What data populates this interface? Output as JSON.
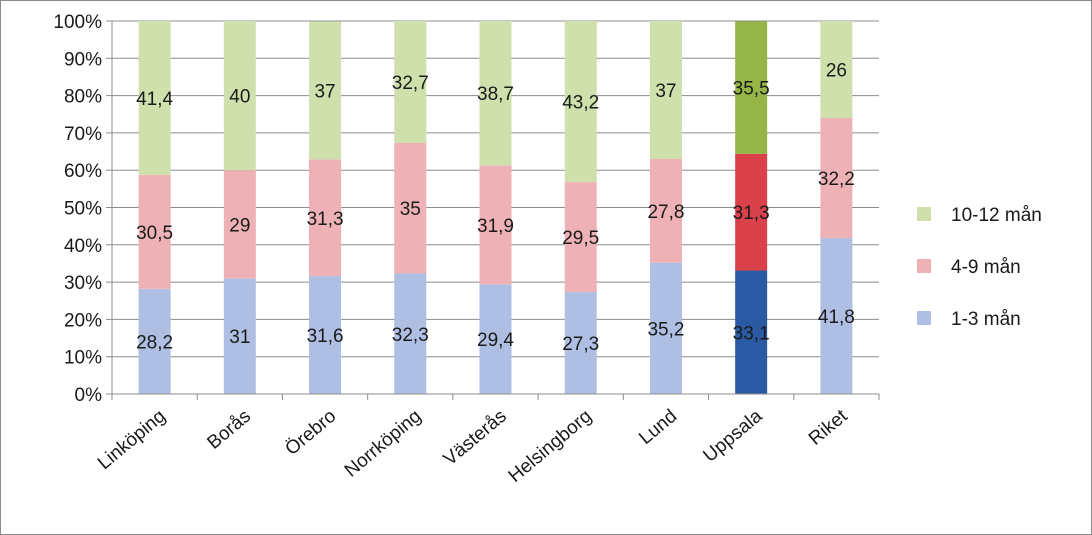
{
  "chart_data": {
    "type": "bar",
    "stacked": true,
    "percent_stacked": true,
    "title": "",
    "xlabel": "",
    "ylabel": "",
    "ylim": [
      0,
      100
    ],
    "y_ticks": [
      "0%",
      "10%",
      "20%",
      "30%",
      "40%",
      "50%",
      "60%",
      "70%",
      "80%",
      "90%",
      "100%"
    ],
    "grid": true,
    "legend_position": "right",
    "categories": [
      "Linköping",
      "Borås",
      "Örebro",
      "Norrköping",
      "Västerås",
      "Helsingborg",
      "Lund",
      "Uppsala",
      "Riket"
    ],
    "series": [
      {
        "name": "1-3 mån",
        "values": [
          28.2,
          31,
          31.6,
          32.3,
          29.4,
          27.3,
          35.2,
          33.1,
          41.8
        ],
        "labels": [
          "28,2",
          "31",
          "31,6",
          "32,3",
          "29,4",
          "27,3",
          "35,2",
          "33,1",
          "41,8"
        ],
        "color": "#aebfe3",
        "highlight_color": "#2a5aa3"
      },
      {
        "name": "4-9 mån",
        "values": [
          30.5,
          29,
          31.3,
          35,
          31.9,
          29.5,
          27.8,
          31.3,
          32.2
        ],
        "labels": [
          "30,5",
          "29",
          "31,3",
          "35",
          "31,9",
          "29,5",
          "27,8",
          "31,3",
          "32,2"
        ],
        "color": "#eeb2b6",
        "highlight_color": "#d9414b"
      },
      {
        "name": "10-12 mån",
        "values": [
          41.4,
          40,
          37,
          32.7,
          38.7,
          43.2,
          37,
          35.5,
          26
        ],
        "labels": [
          "41,4",
          "40",
          "37",
          "32,7",
          "38,7",
          "43,2",
          "37",
          "35,5",
          "26"
        ],
        "color": "#cfe0ad",
        "highlight_color": "#96b547"
      }
    ],
    "highlighted_category": "Uppsala",
    "legend_order": [
      "10-12 mån",
      "4-9 mån",
      "1-3 mån"
    ]
  }
}
